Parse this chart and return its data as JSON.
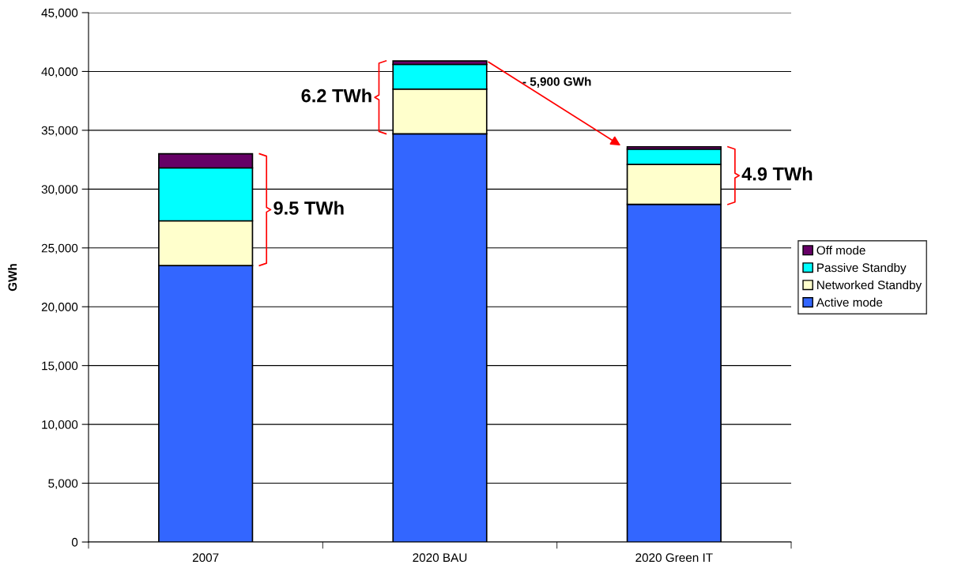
{
  "chart_data": {
    "type": "bar",
    "stacked": true,
    "ylabel": "GWh",
    "categories": [
      "2007",
      "2020 BAU",
      "2020 Green IT"
    ],
    "series": [
      {
        "name": "Active mode",
        "color": "#3366ff",
        "values": [
          23500,
          34700,
          28700
        ]
      },
      {
        "name": "Networked Standby",
        "color": "#ffffcc",
        "values": [
          3800,
          3800,
          3400
        ]
      },
      {
        "name": "Passive Standby",
        "color": "#00ffff",
        "values": [
          4500,
          2100,
          1300
        ]
      },
      {
        "name": "Off mode",
        "color": "#660066",
        "values": [
          1200,
          300,
          200
        ]
      }
    ],
    "ylim": [
      0,
      45000
    ],
    "yticks": [
      {
        "value": 0,
        "label": "0"
      },
      {
        "value": 5000,
        "label": "5,000"
      },
      {
        "value": 10000,
        "label": "10,000"
      },
      {
        "value": 15000,
        "label": "15,000"
      },
      {
        "value": 20000,
        "label": "20,000"
      },
      {
        "value": 25000,
        "label": "25,000"
      },
      {
        "value": 30000,
        "label": "30,000"
      },
      {
        "value": 35000,
        "label": "35,000"
      },
      {
        "value": 40000,
        "label": "40,000"
      },
      {
        "value": 45000,
        "label": "45,000"
      }
    ],
    "grid": "y",
    "legend": "right",
    "annotations": [
      "9.5 TWh",
      "6.2 TWh",
      "4.9 TWh",
      "- 5,900 GWh"
    ]
  }
}
